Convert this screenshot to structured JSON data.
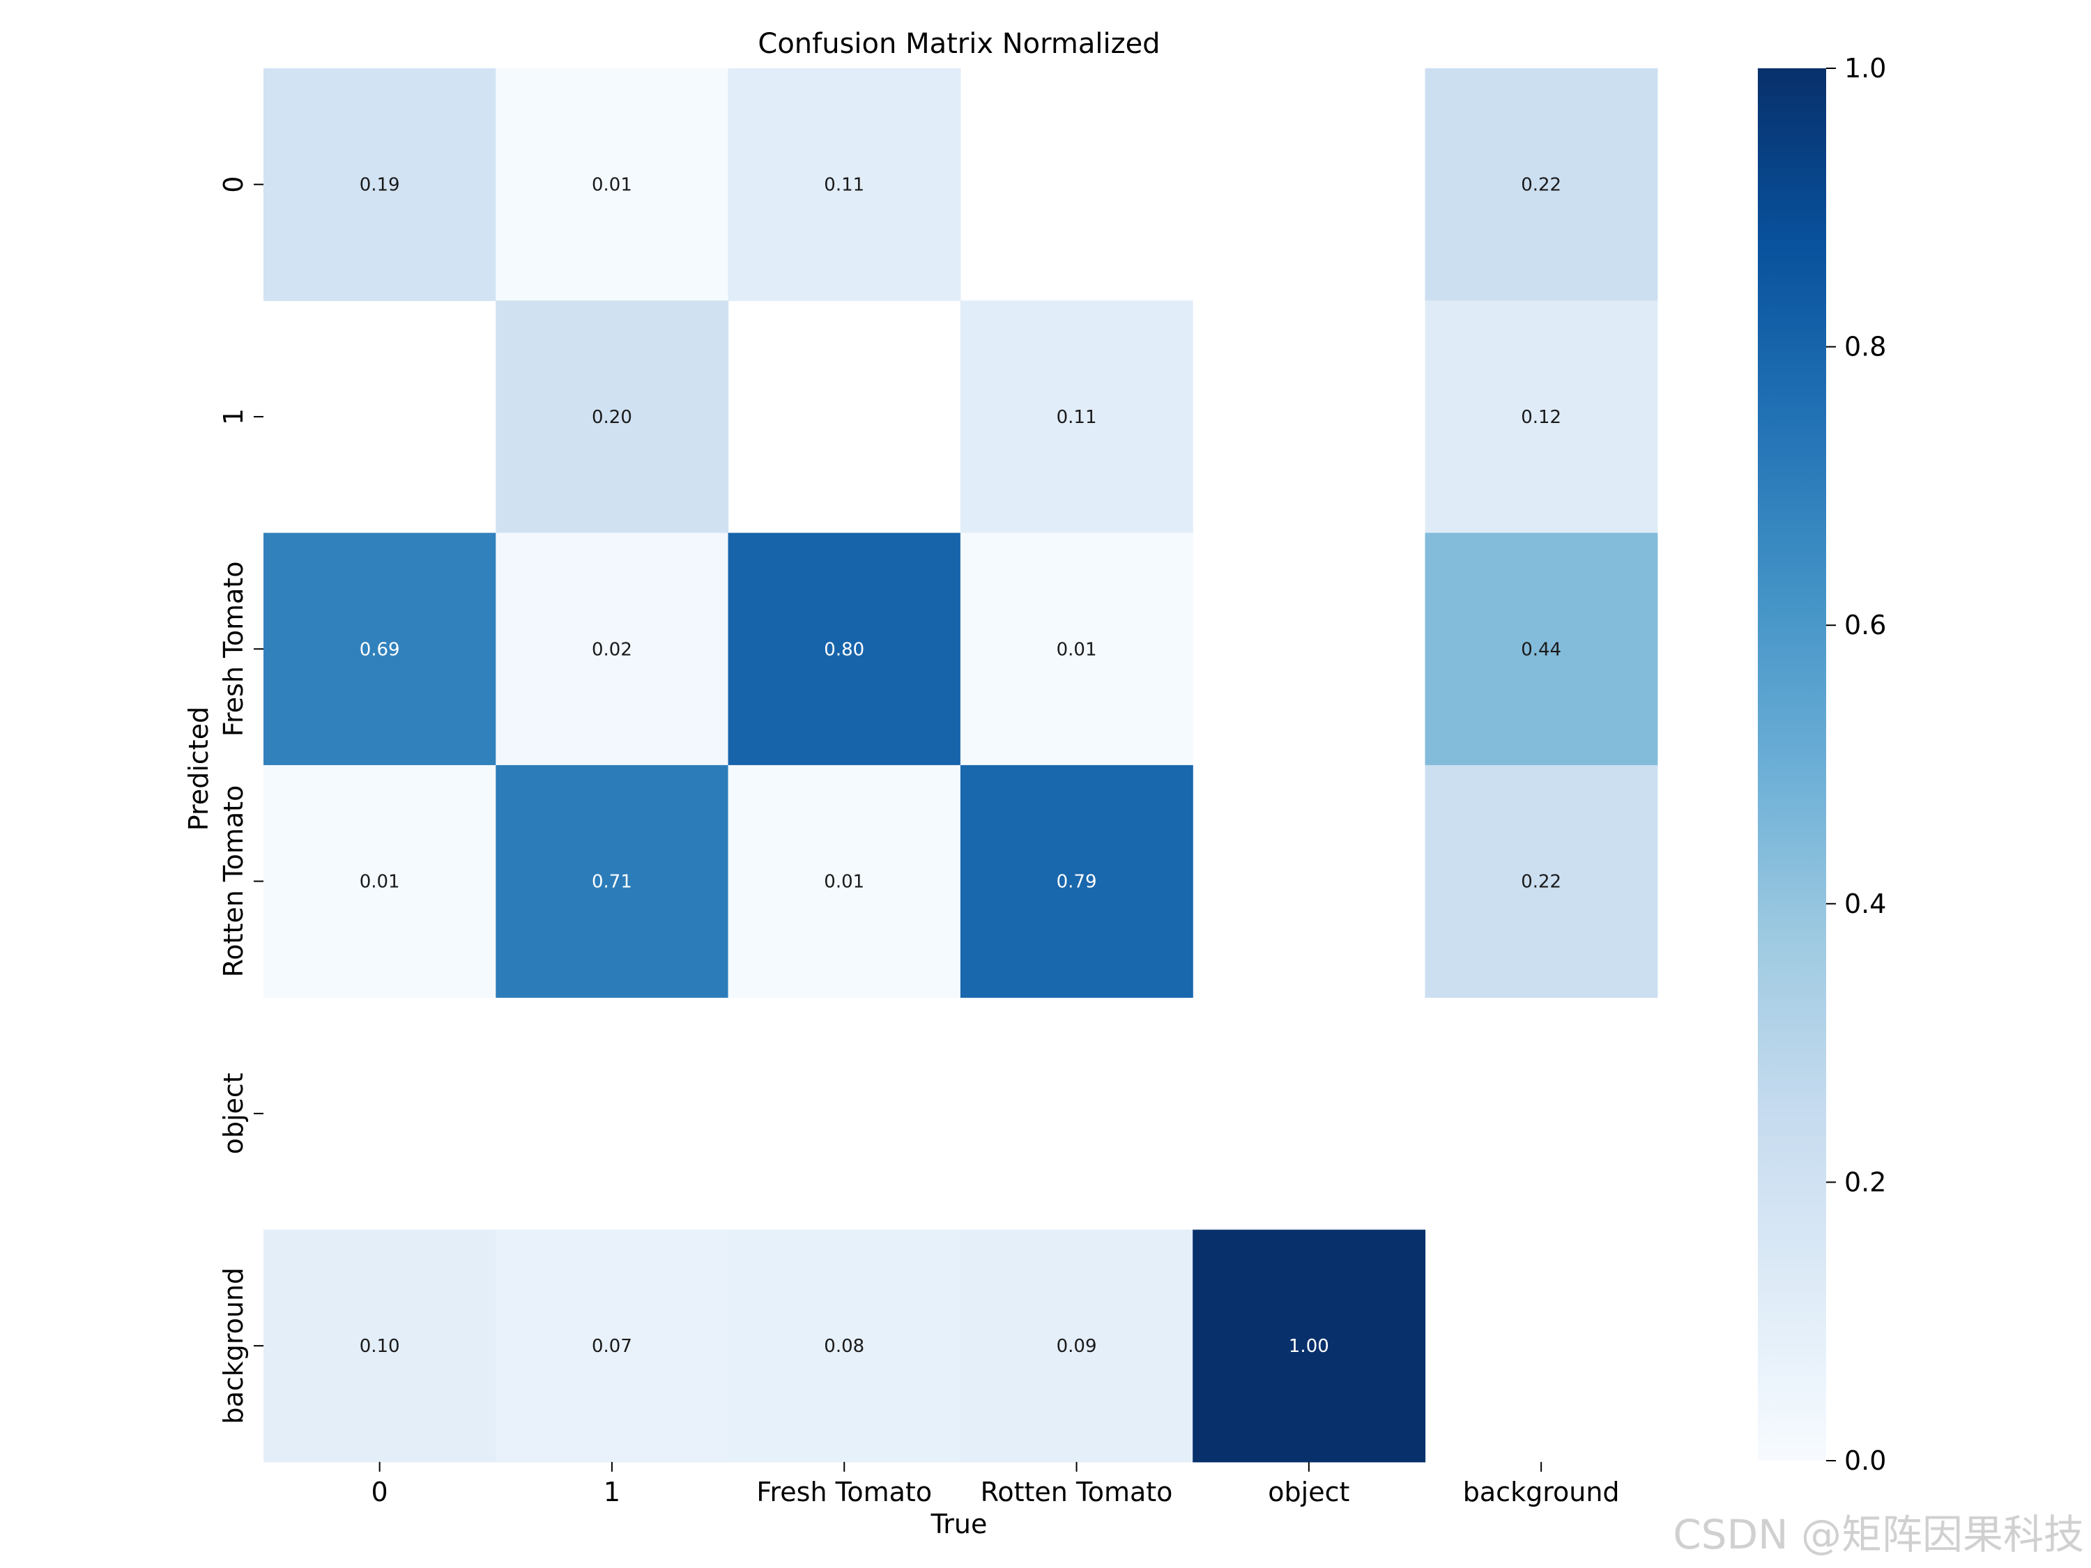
{
  "chart_data": {
    "type": "heatmap",
    "title": "Confusion Matrix Normalized",
    "xlabel": "True",
    "ylabel": "Predicted",
    "x_categories": [
      "0",
      "1",
      "Fresh Tomato",
      "Rotten Tomato",
      "object",
      "background"
    ],
    "y_categories": [
      "0",
      "1",
      "Fresh Tomato",
      "Rotten Tomato",
      "object",
      "background"
    ],
    "values": [
      [
        0.19,
        0.01,
        0.11,
        null,
        null,
        0.22
      ],
      [
        null,
        0.2,
        null,
        0.11,
        null,
        0.12
      ],
      [
        0.69,
        0.02,
        0.8,
        0.01,
        null,
        0.44
      ],
      [
        0.01,
        0.71,
        0.01,
        0.79,
        null,
        0.22
      ],
      [
        null,
        null,
        null,
        null,
        null,
        null
      ],
      [
        0.1,
        0.07,
        0.08,
        0.09,
        1.0,
        null
      ]
    ],
    "value_format": "0.00",
    "colormap": "Blues",
    "colorbar": {
      "range": [
        0.0,
        1.0
      ],
      "ticks": [
        "0.0",
        "0.2",
        "0.4",
        "0.6",
        "0.8",
        "1.0"
      ]
    },
    "empty_cells": "blank"
  },
  "watermark": "CSDN @矩阵因果科技"
}
